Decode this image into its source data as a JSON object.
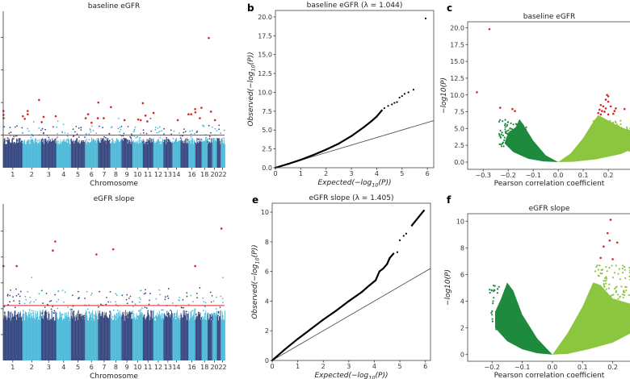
{
  "colors": {
    "manhattan_dark": "#35467f",
    "manhattan_light": "#4db8d8",
    "significant": "#d62728",
    "threshold_line": "#d62728",
    "neg_corr": "#1e8a3e",
    "pos_corr": "#8cc63f",
    "qq_points": "#000000",
    "qq_null_line": "#555555"
  },
  "chart_data": [
    {
      "id": "manhattan_baseline",
      "type": "scatter",
      "title": "baseline eGFR",
      "xlabel": "Chromosome",
      "ylabel": "",
      "x_tick_labels": [
        "1",
        "2",
        "3",
        "4",
        "5",
        "6",
        "7",
        "8",
        "9",
        "10",
        "11",
        "12",
        "13",
        "14",
        "16",
        "18",
        "20",
        "22"
      ],
      "ylim": [
        0,
        24
      ],
      "y_ticks": [
        5,
        10,
        15,
        20
      ],
      "y_tick_labels_visible": false,
      "threshold": 5,
      "significant_points": [
        {
          "chr": 1,
          "pos_mb": 3,
          "value": 8.7
        },
        {
          "chr": 1,
          "pos_mb": 4,
          "value": 8.1
        },
        {
          "chr": 1,
          "pos_mb": 5,
          "value": 7.6
        },
        {
          "chr": 2,
          "pos_mb": 7,
          "value": 7.9
        },
        {
          "chr": 2,
          "pos_mb": 31,
          "value": 7.5
        },
        {
          "chr": 2,
          "pos_mb": 69,
          "value": 8.7
        },
        {
          "chr": 2,
          "pos_mb": 70,
          "value": 8.2
        },
        {
          "chr": 2,
          "pos_mb": 217,
          "value": 10.4
        },
        {
          "chr": 3,
          "pos_mb": 9,
          "value": 7.0
        },
        {
          "chr": 3,
          "pos_mb": 33,
          "value": 7.8
        },
        {
          "chr": 3,
          "pos_mb": 191,
          "value": 7.9
        },
        {
          "chr": 6,
          "pos_mb": 10,
          "value": 7.6
        },
        {
          "chr": 6,
          "pos_mb": 42,
          "value": 8.2
        },
        {
          "chr": 6,
          "pos_mb": 87,
          "value": 6.9
        },
        {
          "chr": 6,
          "pos_mb": 168,
          "value": 7.6
        },
        {
          "chr": 7,
          "pos_mb": 4,
          "value": 10.0
        },
        {
          "chr": 7,
          "pos_mb": 74,
          "value": 7.6
        },
        {
          "chr": 8,
          "pos_mb": 9,
          "value": 9.3
        },
        {
          "chr": 9,
          "pos_mb": 39,
          "value": 7.3
        },
        {
          "chr": 10,
          "pos_mb": 76,
          "value": 7.4
        },
        {
          "chr": 10,
          "pos_mb": 108,
          "value": 7.3
        },
        {
          "chr": 11,
          "pos_mb": 1,
          "value": 9.9
        },
        {
          "chr": 11,
          "pos_mb": 35,
          "value": 8.0
        },
        {
          "chr": 11,
          "pos_mb": 59,
          "value": 7.1
        },
        {
          "chr": 12,
          "pos_mb": 5,
          "value": 8.4
        },
        {
          "chr": 14,
          "pos_mb": 71,
          "value": 7.3
        },
        {
          "chr": 16,
          "pos_mb": 2,
          "value": 8.2
        },
        {
          "chr": 16,
          "pos_mb": 37,
          "value": 8.2
        },
        {
          "chr": 16,
          "pos_mb": 88,
          "value": 9.0
        },
        {
          "chr": 17,
          "pos_mb": 1,
          "value": 8.5
        },
        {
          "chr": 17,
          "pos_mb": 59,
          "value": 7.6
        },
        {
          "chr": 17,
          "pos_mb": 80,
          "value": 9.2
        },
        {
          "chr": 19,
          "pos_mb": 16,
          "value": 19.9
        },
        {
          "chr": 19,
          "pos_mb": 44,
          "value": 8.6
        },
        {
          "chr": 20,
          "pos_mb": 38,
          "value": 7.3
        }
      ]
    },
    {
      "id": "qq_baseline",
      "type": "scatter",
      "title": "baseline eGFR (λ = 1.044)",
      "xlabel": "Expected(−log10(P))",
      "ylabel": "Observed(−log10(P))",
      "xlim": [
        0,
        6.25
      ],
      "ylim": [
        0,
        20.85
      ],
      "x_ticks": [
        0,
        1,
        2,
        3,
        4,
        5,
        6
      ],
      "x_tick_labels": [
        "0",
        "1",
        "2",
        "3",
        "4",
        "5",
        "6"
      ],
      "y_ticks": [
        0,
        2.5,
        5,
        7.5,
        10,
        12.5,
        15,
        17.5,
        20
      ],
      "y_tick_labels": [
        "0.0",
        "2.5",
        "5.0",
        "7.5",
        "10.0",
        "12.5",
        "15.0",
        "17.5",
        "20.0"
      ],
      "points": [
        [
          0,
          0
        ],
        [
          0.5,
          0.5
        ],
        [
          1,
          1.05
        ],
        [
          1.5,
          1.7
        ],
        [
          2,
          2.4
        ],
        [
          2.5,
          3.2
        ],
        [
          3,
          4.2
        ],
        [
          3.5,
          5.4
        ],
        [
          3.8,
          6.2
        ],
        [
          4,
          6.8
        ],
        [
          4.2,
          7.6
        ],
        [
          4.3,
          7.9
        ],
        [
          4.45,
          8.2
        ],
        [
          4.6,
          8.4
        ],
        [
          4.7,
          8.6
        ],
        [
          4.8,
          8.7
        ],
        [
          4.9,
          9.3
        ],
        [
          5.0,
          9.5
        ],
        [
          5.1,
          9.8
        ],
        [
          5.25,
          10.0
        ],
        [
          5.45,
          10.35
        ],
        [
          5.93,
          19.8
        ]
      ],
      "reference_line": "y = x"
    },
    {
      "id": "volcano_baseline",
      "type": "scatter",
      "title": "baseline eGFR",
      "xlabel": "Pearson correlation coefficient",
      "ylabel": "−log10(P)",
      "xlim": [
        -0.362,
        0.29
      ],
      "ylim": [
        -1.08,
        20.9
      ],
      "x_ticks": [
        -0.3,
        -0.2,
        -0.1,
        0.0,
        0.1,
        0.2
      ],
      "x_tick_labels": [
        "−0.3",
        "−0.2",
        "−0.1",
        "0.0",
        "0.1",
        "0.2"
      ],
      "y_ticks": [
        0,
        2.5,
        5,
        7.5,
        10,
        12.5,
        15,
        17.5,
        20
      ],
      "y_tick_labels": [
        "0.0",
        "2.5",
        "5.0",
        "7.5",
        "10.0",
        "12.5",
        "15.0",
        "17.5",
        "20.0"
      ],
      "significant_points": [
        [
          -0.275,
          19.8
        ],
        [
          -0.325,
          10.4
        ],
        [
          -0.232,
          8.1
        ],
        [
          -0.183,
          7.9
        ],
        [
          -0.173,
          7.6
        ],
        [
          0.195,
          10.0
        ],
        [
          0.2,
          9.8
        ],
        [
          0.19,
          9.3
        ],
        [
          0.2,
          9.0
        ],
        [
          0.17,
          8.5
        ],
        [
          0.18,
          8.3
        ],
        [
          0.19,
          8.0
        ],
        [
          0.21,
          8.3
        ],
        [
          0.165,
          7.8
        ],
        [
          0.175,
          7.6
        ],
        [
          0.16,
          7.3
        ],
        [
          0.185,
          7.5
        ],
        [
          0.23,
          8.0
        ],
        [
          0.225,
          7.6
        ],
        [
          0.22,
          7.2
        ],
        [
          0.265,
          7.9
        ],
        [
          0.2,
          7.1
        ],
        [
          0.17,
          7.1
        ]
      ]
    },
    {
      "id": "manhattan_slope",
      "type": "scatter",
      "title": "eGFR slope",
      "xlabel": "Chromosome",
      "ylabel": "",
      "x_tick_labels": [
        "1",
        "2",
        "3",
        "4",
        "5",
        "6",
        "7",
        "8",
        "9",
        "10",
        "11",
        "12",
        "13",
        "14",
        "16",
        "18",
        "20",
        "22"
      ],
      "ylim": [
        0,
        12.1
      ],
      "y_ticks": [
        2,
        4,
        6,
        8,
        10
      ],
      "y_tick_labels_visible": false,
      "threshold": 4.25,
      "significant_points": [
        {
          "chr": 1,
          "pos_mb": 3,
          "value": 7.3
        },
        {
          "chr": 1,
          "pos_mb": 175,
          "value": 7.3
        },
        {
          "chr": 3,
          "pos_mb": 153,
          "value": 8.5
        },
        {
          "chr": 3,
          "pos_mb": 184,
          "value": 9.2
        },
        {
          "chr": 6,
          "pos_mb": 150,
          "value": 8.2
        },
        {
          "chr": 8,
          "pos_mb": 38,
          "value": 8.6
        },
        {
          "chr": 16,
          "pos_mb": 88,
          "value": 7.3
        },
        {
          "chr": 22,
          "pos_mb": 11,
          "value": 10.2
        }
      ]
    },
    {
      "id": "qq_slope",
      "type": "scatter",
      "title": "eGFR slope (λ = 1.405)",
      "xlabel": "Expected(−log10(P))",
      "ylabel": "Observed(−log10(P))",
      "xlim": [
        0,
        6.2
      ],
      "ylim": [
        0,
        10.6
      ],
      "x_ticks": [
        0,
        1,
        2,
        3,
        4,
        5,
        6
      ],
      "x_tick_labels": [
        "0",
        "1",
        "2",
        "3",
        "4",
        "5",
        "6"
      ],
      "y_ticks": [
        0,
        2,
        4,
        6,
        8,
        10
      ],
      "y_tick_labels": [
        "0",
        "2",
        "4",
        "6",
        "8",
        "10"
      ],
      "points": [
        [
          0,
          0
        ],
        [
          0.5,
          0.75
        ],
        [
          1,
          1.45
        ],
        [
          1.5,
          2.1
        ],
        [
          2,
          2.75
        ],
        [
          2.5,
          3.35
        ],
        [
          3,
          4.0
        ],
        [
          3.5,
          4.6
        ],
        [
          3.8,
          5.05
        ],
        [
          4.05,
          5.4
        ],
        [
          4.2,
          6.0
        ],
        [
          4.35,
          6.2
        ],
        [
          4.5,
          6.5
        ],
        [
          4.6,
          6.9
        ],
        [
          4.75,
          7.2
        ],
        [
          4.9,
          7.3
        ],
        [
          5.0,
          8.1
        ],
        [
          5.15,
          8.4
        ],
        [
          5.25,
          8.55
        ],
        [
          5.47,
          9.1
        ],
        [
          5.94,
          10.1
        ]
      ],
      "reference_line": "y = x"
    },
    {
      "id": "volcano_slope",
      "type": "scatter",
      "title": "eGFR slope",
      "xlabel": "Pearson correlation coefficient",
      "ylabel": "−log10(P)",
      "xlim": [
        -0.281,
        0.26
      ],
      "ylim": [
        -0.5,
        10.56
      ],
      "x_ticks": [
        -0.2,
        -0.1,
        0.0,
        0.1,
        0.2
      ],
      "x_tick_labels": [
        "−0.2",
        "−0.1",
        "0.0",
        "0.1",
        "0.2"
      ],
      "y_ticks": [
        0,
        2,
        4,
        6,
        8,
        10
      ],
      "y_tick_labels": [
        "0",
        "2",
        "4",
        "6",
        "8",
        "10"
      ],
      "significant_points": [
        [
          0.193,
          10.1
        ],
        [
          0.183,
          9.1
        ],
        [
          0.19,
          8.55
        ],
        [
          0.215,
          8.4
        ],
        [
          0.17,
          8.1
        ],
        [
          0.16,
          7.25
        ],
        [
          0.2,
          7.15
        ]
      ]
    }
  ],
  "panel_labels": [
    "b",
    "c",
    "e",
    "f"
  ]
}
